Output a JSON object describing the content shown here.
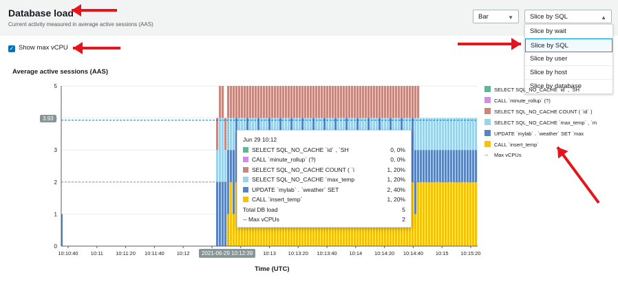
{
  "header": {
    "title": "Database load",
    "subtitle": "Current activity measured in average active sessions (AAS)"
  },
  "controls": {
    "chart_type": "Bar",
    "slice_by": "Slice by SQL",
    "slice_menu": [
      "Slice by wait",
      "Slice by SQL",
      "Slice by user",
      "Slice by host",
      "Slice by database"
    ],
    "selected_index": 1
  },
  "checkbox": {
    "label": "Show max vCPU",
    "checked": true
  },
  "chart": {
    "title": "Average active sessions (AAS)",
    "x_title": "Time (UTC)",
    "max_vcpu_badge": "3.93",
    "crosshair_time": "2021-06-29 10:12:39"
  },
  "legend": [
    {
      "label": "SELECT SQL_NO_CACHE `id` , `SH",
      "color": "#5db89a"
    },
    {
      "label": "CALL `minute_rollup` (?)",
      "color": "#d18ee8"
    },
    {
      "label": "SELECT SQL_NO_CACHE COUNT ( `id` )",
      "color": "#c7877e"
    },
    {
      "label": "SELECT SQL_NO_CACHE `max_temp` , `m",
      "color": "#9dd3ea"
    },
    {
      "label": "UPDATE `mylab` . `weather` SET `max",
      "color": "#5a83c2"
    },
    {
      "label": "CALL `insert_temp`",
      "color": "#f4c20d"
    },
    {
      "label": "Max vCPUs",
      "color": "#545b64"
    }
  ],
  "tooltip": {
    "time": "Jun 29 10:12",
    "rows": [
      {
        "label": "SELECT SQL_NO_CACHE `id` , `SH",
        "value": "0, 0%",
        "color": "#5db89a"
      },
      {
        "label": "CALL `minute_rollup` (?)",
        "value": "0, 0%",
        "color": "#d18ee8"
      },
      {
        "label": "SELECT SQL_NO_CACHE COUNT ( `i",
        "value": "1, 20%",
        "color": "#c7877e"
      },
      {
        "label": "SELECT SQL_NO_CACHE `max_temp",
        "value": "1, 20%",
        "color": "#9dd3ea"
      },
      {
        "label": "UPDATE `mylab` . `weather` SET",
        "value": "2, 40%",
        "color": "#5a83c2"
      },
      {
        "label": "CALL `insert_temp`",
        "value": "1, 20%",
        "color": "#f4c20d"
      }
    ],
    "total_label": "Total DB load",
    "total_value": "5",
    "vcpu_label": "-- Max vCPUs",
    "vcpu_value": "2"
  },
  "chart_data": {
    "type": "bar",
    "title": "Average active sessions (AAS)",
    "xlabel": "Time (UTC)",
    "ylabel": "",
    "ylim": [
      0,
      5
    ],
    "yticks": [
      "0",
      "1",
      "2",
      "3",
      "4",
      "5"
    ],
    "xticks": [
      "10:10:40",
      "10:11",
      "10:11:20",
      "10:11:40",
      "10:12",
      "10:12:20",
      "10:12:40",
      "10:13",
      "10:13:20",
      "10:13:40",
      "10:14",
      "10:14:20",
      "10:14:40",
      "10:15",
      "10:15:20"
    ],
    "reference_lines": [
      {
        "name": "Max vCPUs",
        "value": 2
      },
      {
        "name": "Max vCPU",
        "value": 3.93
      }
    ],
    "stacked_segments_typical": [
      {
        "series": "CALL `insert_temp`",
        "value": 1
      },
      {
        "series": "UPDATE `mylab` . `weather` SET",
        "value": 2
      },
      {
        "series": "SELECT SQL_NO_CACHE `max_temp`",
        "value": 1
      },
      {
        "series": "SELECT SQL_NO_CACHE COUNT",
        "value": 1
      }
    ]
  }
}
